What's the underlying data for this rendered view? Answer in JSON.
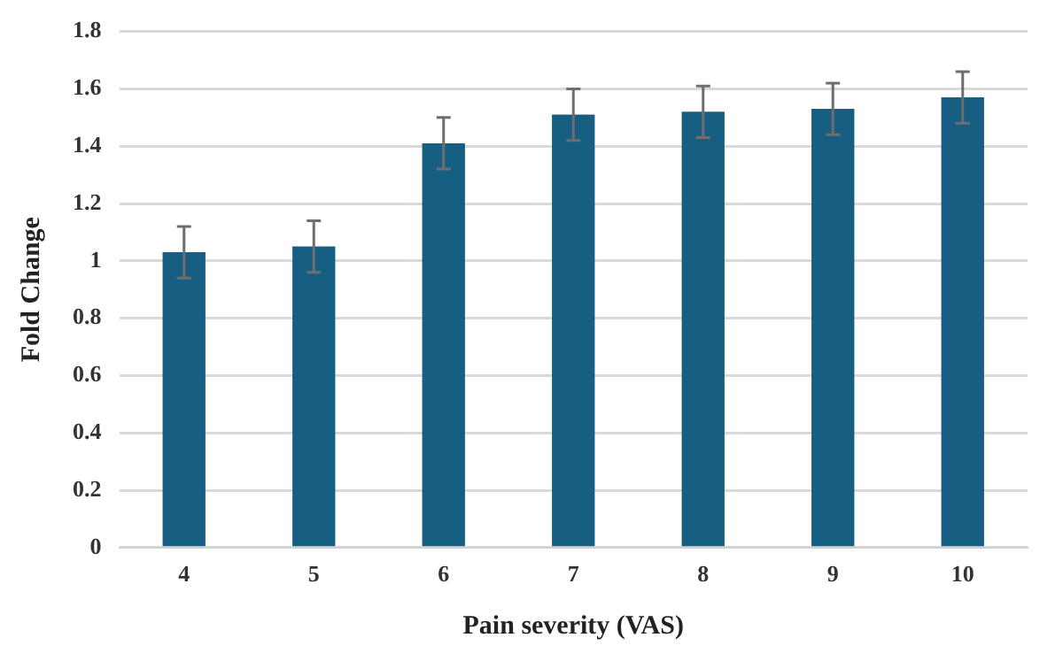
{
  "chart_data": {
    "type": "bar",
    "xlabel": "Pain severity (VAS)",
    "ylabel": "Fold Change",
    "categories": [
      "4",
      "5",
      "6",
      "7",
      "8",
      "9",
      "10"
    ],
    "values": [
      1.03,
      1.05,
      1.41,
      1.51,
      1.52,
      1.53,
      1.57
    ],
    "errors": [
      0.09,
      0.09,
      0.09,
      0.09,
      0.09,
      0.09,
      0.09
    ],
    "color": "#175f82",
    "ylim": [
      0,
      1.8
    ],
    "yticks": [
      0,
      0.2,
      0.4,
      0.6,
      0.8,
      1,
      1.2,
      1.4,
      1.6,
      1.8
    ],
    "grid": "y",
    "legend": false
  }
}
